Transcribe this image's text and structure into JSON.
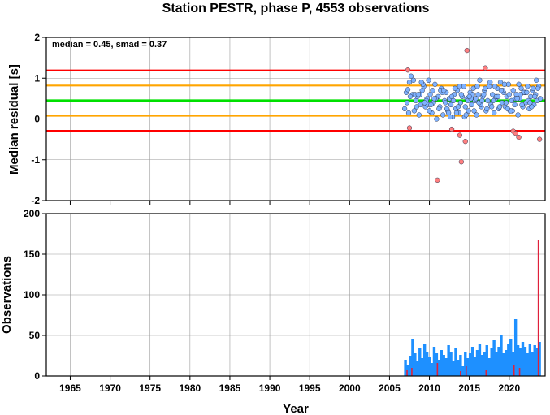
{
  "chart_data": [
    {
      "type": "scatter",
      "title": "Station PESTR, phase P, 4553 observations",
      "ylabel": "Median residual [s]",
      "annotation": "median = 0.45, smad = 0.37",
      "xlim": [
        1962,
        2024.5
      ],
      "ylim": [
        -2,
        2
      ],
      "x_ticks": [
        1965,
        1970,
        1975,
        1980,
        1985,
        1990,
        1995,
        2000,
        2005,
        2010,
        2015,
        2020
      ],
      "y_ticks": [
        -2,
        -1,
        0,
        1,
        2
      ],
      "grid": true,
      "reference_lines": [
        {
          "name": "median",
          "value": 0.45,
          "color": "#00e000"
        },
        {
          "name": "median + smad",
          "value": 0.82,
          "color": "#ffa500"
        },
        {
          "name": "median - smad",
          "value": 0.08,
          "color": "#ffa500"
        },
        {
          "name": "median + 2 smad",
          "value": 1.19,
          "color": "#ff0000"
        },
        {
          "name": "median - 2 smad",
          "value": -0.29,
          "color": "#ff0000"
        }
      ],
      "series": [
        {
          "style": "inlier",
          "color": "#7fb2ff",
          "x": [
            2006.9,
            2007.1,
            2007.3,
            2007.5,
            2007.7,
            2007.9,
            2008.1,
            2008.3,
            2008.5,
            2008.7,
            2008.9,
            2009.1,
            2009.3,
            2009.5,
            2009.7,
            2009.9,
            2010.1,
            2010.3,
            2010.5,
            2010.7,
            2010.9,
            2011.1,
            2011.3,
            2011.5,
            2011.7,
            2011.9,
            2012.1,
            2012.3,
            2012.5,
            2012.7,
            2012.9,
            2013.1,
            2013.3,
            2013.5,
            2013.7,
            2013.9,
            2014.1,
            2014.3,
            2014.5,
            2014.7,
            2014.9,
            2015.1,
            2015.3,
            2015.5,
            2015.7,
            2015.9,
            2016.1,
            2016.3,
            2016.5,
            2016.7,
            2016.9,
            2017.1,
            2017.3,
            2017.5,
            2017.7,
            2017.9,
            2018.1,
            2018.3,
            2018.5,
            2018.7,
            2018.9,
            2019.1,
            2019.3,
            2019.5,
            2019.7,
            2019.9,
            2020.1,
            2020.3,
            2020.5,
            2020.7,
            2020.9,
            2021.1,
            2021.3,
            2021.5,
            2021.7,
            2021.9,
            2022.1,
            2022.3,
            2022.5,
            2022.7,
            2022.9,
            2023.1,
            2023.3,
            2023.5,
            2023.7,
            2023.9,
            2007.2,
            2007.6,
            2008.0,
            2008.4,
            2008.8,
            2009.2,
            2009.6,
            2010.0,
            2010.4,
            2010.8,
            2011.2,
            2011.6,
            2012.0,
            2012.4,
            2012.8,
            2013.2,
            2013.6,
            2014.0,
            2014.4,
            2014.8,
            2015.2,
            2015.6,
            2016.0,
            2016.4,
            2016.8,
            2017.2,
            2017.6,
            2018.0,
            2018.4,
            2018.8,
            2019.2,
            2019.6,
            2020.0,
            2020.4,
            2020.8,
            2021.2,
            2021.6,
            2022.0,
            2022.4,
            2022.8,
            2023.2,
            2023.6,
            2007.4,
            2008.2,
            2009.0,
            2009.8,
            2010.6,
            2011.4,
            2012.2,
            2013.0,
            2013.8,
            2014.6,
            2015.4,
            2016.2,
            2017.0,
            2017.8,
            2018.6,
            2019.4,
            2020.2,
            2021.0,
            2021.8,
            2022.6,
            2023.4,
            2008.6,
            2010.2,
            2011.8,
            2013.4,
            2015.0,
            2016.6,
            2018.2,
            2019.8,
            2021.4,
            2023.0,
            2009.4,
            2012.6,
            2015.8,
            2019.0,
            2022.2
          ],
          "y": [
            0.25,
            0.65,
            0.72,
            0.9,
            1.05,
            0.6,
            0.2,
            0.45,
            0.55,
            0.1,
            0.35,
            0.7,
            0.8,
            0.3,
            0.5,
            0.95,
            0.6,
            0.15,
            0.4,
            0.85,
            0.0,
            0.55,
            0.3,
            0.75,
            0.1,
            0.45,
            0.65,
            0.2,
            0.5,
            0.35,
            0.05,
            0.6,
            0.25,
            0.7,
            0.15,
            0.4,
            0.55,
            0.8,
            0.3,
            0.5,
            0.2,
            0.65,
            0.35,
            0.75,
            0.45,
            0.1,
            0.6,
            0.95,
            0.3,
            0.55,
            0.7,
            0.2,
            0.45,
            0.8,
            0.35,
            0.6,
            0.15,
            0.5,
            0.75,
            0.25,
            0.9,
            0.4,
            0.65,
            0.3,
            0.55,
            0.85,
            0.2,
            0.45,
            0.7,
            0.35,
            0.6,
            0.1,
            0.5,
            0.75,
            0.3,
            0.65,
            0.4,
            0.8,
            0.25,
            0.55,
            0.7,
            0.35,
            0.6,
            0.45,
            0.8,
            0.5,
            0.4,
            0.55,
            0.95,
            0.3,
            0.6,
            0.85,
            0.45,
            0.2,
            0.7,
            0.5,
            0.25,
            0.65,
            0.4,
            0.15,
            0.55,
            0.75,
            0.3,
            0.6,
            0.05,
            0.45,
            0.5,
            0.2,
            0.8,
            0.35,
            0.6,
            0.25,
            0.9,
            0.45,
            0.55,
            0.3,
            0.7,
            0.4,
            0.6,
            0.2,
            0.5,
            0.85,
            0.35,
            0.65,
            0.45,
            0.3,
            0.55,
            0.75,
            0.15,
            0.6,
            0.9,
            0.35,
            0.5,
            0.7,
            0.25,
            0.45,
            0.8,
            0.1,
            0.6,
            0.4,
            0.75,
            0.3,
            0.55,
            0.85,
            0.2,
            0.5,
            0.65,
            0.4,
            0.95,
            0.6,
            0.35,
            0.7,
            0.15,
            0.55,
            0.45,
            0.8,
            0.25,
            0.6,
            0.75,
            0.4,
            0.05,
            0.5,
            0.7,
            0.65
          ]
        },
        {
          "style": "outlier",
          "color": "#ff7f7f",
          "x": [
            2007.3,
            2007.5,
            2011.0,
            2013.8,
            2014.0,
            2014.5,
            2014.7,
            2017.0,
            2020.5,
            2020.8,
            2021.2,
            2023.8,
            2012.8
          ],
          "y": [
            1.2,
            -0.22,
            -1.5,
            -0.4,
            -1.05,
            -0.55,
            1.68,
            1.25,
            -0.3,
            -0.35,
            -0.45,
            -0.5,
            -0.25
          ]
        }
      ]
    },
    {
      "type": "bar",
      "ylabel": "Observations",
      "xlabel": "Year",
      "xlim": [
        1962,
        2024.5
      ],
      "ylim": [
        0,
        200
      ],
      "x_ticks": [
        1965,
        1970,
        1975,
        1980,
        1985,
        1990,
        1995,
        2000,
        2005,
        2010,
        2015,
        2020
      ],
      "y_ticks": [
        0,
        50,
        100,
        150,
        200
      ],
      "grid": true,
      "series": [
        {
          "style": "inlier",
          "color": "#1e90ff",
          "x": [
            2007.0,
            2007.3,
            2007.6,
            2007.9,
            2008.2,
            2008.5,
            2008.8,
            2009.1,
            2009.4,
            2009.7,
            2010.0,
            2010.3,
            2010.6,
            2010.9,
            2011.2,
            2011.5,
            2011.8,
            2012.1,
            2012.4,
            2012.7,
            2013.0,
            2013.3,
            2013.6,
            2013.9,
            2014.2,
            2014.5,
            2014.8,
            2015.1,
            2015.4,
            2015.7,
            2016.0,
            2016.3,
            2016.6,
            2016.9,
            2017.2,
            2017.5,
            2017.8,
            2018.1,
            2018.4,
            2018.7,
            2019.0,
            2019.3,
            2019.6,
            2019.9,
            2020.2,
            2020.5,
            2020.8,
            2021.1,
            2021.4,
            2021.7,
            2022.0,
            2022.3,
            2022.6,
            2022.9,
            2023.2,
            2023.5,
            2023.8
          ],
          "values": [
            20,
            14,
            25,
            46,
            28,
            18,
            34,
            22,
            40,
            30,
            24,
            16,
            36,
            28,
            20,
            32,
            26,
            22,
            38,
            30,
            18,
            34,
            20,
            26,
            12,
            30,
            22,
            28,
            36,
            24,
            32,
            40,
            26,
            30,
            38,
            22,
            34,
            44,
            30,
            36,
            50,
            28,
            32,
            40,
            46,
            30,
            70,
            38,
            34,
            42,
            36,
            28,
            40,
            30,
            38,
            34,
            42
          ]
        },
        {
          "style": "outlier",
          "color": "#e0203a",
          "x": [
            2007.2,
            2007.8,
            2011.0,
            2013.9,
            2014.6,
            2017.1,
            2020.6,
            2021.3,
            2023.65
          ],
          "values": [
            8,
            10,
            16,
            6,
            12,
            8,
            14,
            10,
            168
          ]
        }
      ]
    }
  ]
}
